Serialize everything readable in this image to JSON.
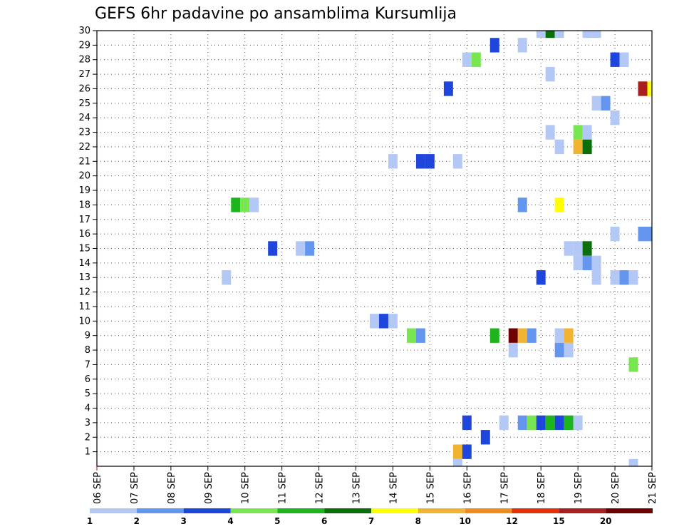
{
  "chart_data": {
    "type": "heatmap",
    "title": "GEFS 6hr padavine po ansamblima Kursumlija",
    "xlabel": "",
    "ylabel": "",
    "x_tick_labels": [
      "06 SEP",
      "07 SEP",
      "08 SEP",
      "09 SEP",
      "10 SEP",
      "11 SEP",
      "12 SEP",
      "13 SEP",
      "14 SEP",
      "15 SEP",
      "16 SEP",
      "17 SEP",
      "18 SEP",
      "19 SEP",
      "20 SEP",
      "21 SEP"
    ],
    "xlim_days": [
      0,
      15
    ],
    "y_tick_labels": [
      "1",
      "2",
      "3",
      "4",
      "5",
      "6",
      "7",
      "8",
      "9",
      "10",
      "11",
      "12",
      "13",
      "14",
      "15",
      "16",
      "17",
      "18",
      "19",
      "20",
      "21",
      "22",
      "23",
      "24",
      "25",
      "26",
      "27",
      "28",
      "29",
      "30"
    ],
    "ylim": [
      0,
      30
    ],
    "grid": true,
    "legend": {
      "placement": "bottom",
      "levels": [
        "1",
        "2",
        "3",
        "4",
        "5",
        "6",
        "7",
        "8",
        "10",
        "12",
        "15",
        "20"
      ],
      "colors": [
        "#b4c8f5",
        "#6496f0",
        "#1e46dc",
        "#78e650",
        "#1eb41e",
        "#0a6e0a",
        "#ffff00",
        "#f0b432",
        "#f08c1e",
        "#e1320a",
        "#aa1e1e",
        "#6e0000"
      ]
    },
    "cells": [
      {
        "member": 30,
        "day": 12.0,
        "level": 1
      },
      {
        "member": 30,
        "day": 12.25,
        "level": 6
      },
      {
        "member": 30,
        "day": 12.5,
        "level": 1
      },
      {
        "member": 30,
        "day": 13.25,
        "level": 1
      },
      {
        "member": 30,
        "day": 13.5,
        "level": 1
      },
      {
        "member": 29,
        "day": 10.75,
        "level": 3
      },
      {
        "member": 29,
        "day": 11.5,
        "level": 1
      },
      {
        "member": 28,
        "day": 10.0,
        "level": 1
      },
      {
        "member": 28,
        "day": 10.25,
        "level": 4
      },
      {
        "member": 28,
        "day": 14.0,
        "level": 3
      },
      {
        "member": 28,
        "day": 14.25,
        "level": 1
      },
      {
        "member": 27,
        "day": 12.25,
        "level": 1
      },
      {
        "member": 26,
        "day": 9.5,
        "level": 3
      },
      {
        "member": 26,
        "day": 14.75,
        "level": 15
      },
      {
        "member": 26,
        "day": 15.0,
        "level": 7
      },
      {
        "member": 25,
        "day": 13.5,
        "level": 1
      },
      {
        "member": 25,
        "day": 13.75,
        "level": 2
      },
      {
        "member": 24,
        "day": 14.0,
        "level": 1
      },
      {
        "member": 23,
        "day": 12.25,
        "level": 1
      },
      {
        "member": 23,
        "day": 13.0,
        "level": 4
      },
      {
        "member": 23,
        "day": 13.25,
        "level": 1
      },
      {
        "member": 22,
        "day": 12.5,
        "level": 1
      },
      {
        "member": 22,
        "day": 13.0,
        "level": 8
      },
      {
        "member": 22,
        "day": 13.25,
        "level": 6
      },
      {
        "member": 21,
        "day": 8.0,
        "level": 1
      },
      {
        "member": 21,
        "day": 8.75,
        "level": 3
      },
      {
        "member": 21,
        "day": 9.0,
        "level": 3
      },
      {
        "member": 21,
        "day": 9.75,
        "level": 1
      },
      {
        "member": 18,
        "day": 3.75,
        "level": 5
      },
      {
        "member": 18,
        "day": 4.0,
        "level": 4
      },
      {
        "member": 18,
        "day": 4.25,
        "level": 1
      },
      {
        "member": 18,
        "day": 11.5,
        "level": 2
      },
      {
        "member": 18,
        "day": 12.5,
        "level": 7
      },
      {
        "member": 16,
        "day": 14.0,
        "level": 1
      },
      {
        "member": 16,
        "day": 14.75,
        "level": 2
      },
      {
        "member": 16,
        "day": 15.0,
        "level": 2
      },
      {
        "member": 15,
        "day": 4.75,
        "level": 3
      },
      {
        "member": 15,
        "day": 5.5,
        "level": 1
      },
      {
        "member": 15,
        "day": 5.75,
        "level": 2
      },
      {
        "member": 15,
        "day": 12.75,
        "level": 1
      },
      {
        "member": 15,
        "day": 13.0,
        "level": 1
      },
      {
        "member": 15,
        "day": 13.25,
        "level": 6
      },
      {
        "member": 14,
        "day": 13.0,
        "level": 1
      },
      {
        "member": 14,
        "day": 13.25,
        "level": 2
      },
      {
        "member": 14,
        "day": 13.5,
        "level": 1
      },
      {
        "member": 13,
        "day": 3.5,
        "level": 1
      },
      {
        "member": 13,
        "day": 12.0,
        "level": 3
      },
      {
        "member": 13,
        "day": 13.5,
        "level": 1
      },
      {
        "member": 13,
        "day": 14.0,
        "level": 1
      },
      {
        "member": 13,
        "day": 14.25,
        "level": 2
      },
      {
        "member": 13,
        "day": 14.5,
        "level": 1
      },
      {
        "member": 10,
        "day": 7.5,
        "level": 1
      },
      {
        "member": 10,
        "day": 7.75,
        "level": 3
      },
      {
        "member": 10,
        "day": 8.0,
        "level": 1
      },
      {
        "member": 9,
        "day": 8.5,
        "level": 4
      },
      {
        "member": 9,
        "day": 8.75,
        "level": 2
      },
      {
        "member": 9,
        "day": 10.75,
        "level": 5
      },
      {
        "member": 9,
        "day": 11.25,
        "level": 20
      },
      {
        "member": 9,
        "day": 11.5,
        "level": 8
      },
      {
        "member": 9,
        "day": 11.75,
        "level": 2
      },
      {
        "member": 9,
        "day": 12.5,
        "level": 1
      },
      {
        "member": 9,
        "day": 12.75,
        "level": 8
      },
      {
        "member": 8,
        "day": 11.25,
        "level": 1
      },
      {
        "member": 8,
        "day": 12.5,
        "level": 2
      },
      {
        "member": 8,
        "day": 12.75,
        "level": 1
      },
      {
        "member": 7,
        "day": 14.5,
        "level": 4
      },
      {
        "member": 3,
        "day": 10.0,
        "level": 3
      },
      {
        "member": 3,
        "day": 11.0,
        "level": 1
      },
      {
        "member": 3,
        "day": 11.5,
        "level": 2
      },
      {
        "member": 3,
        "day": 11.75,
        "level": 4
      },
      {
        "member": 3,
        "day": 12.0,
        "level": 3
      },
      {
        "member": 3,
        "day": 12.25,
        "level": 5
      },
      {
        "member": 3,
        "day": 12.5,
        "level": 3
      },
      {
        "member": 3,
        "day": 12.75,
        "level": 5
      },
      {
        "member": 3,
        "day": 13.0,
        "level": 1
      },
      {
        "member": 2,
        "day": 10.5,
        "level": 3
      },
      {
        "member": 1,
        "day": 9.75,
        "level": 8
      },
      {
        "member": 1,
        "day": 10.0,
        "level": 3
      },
      {
        "member": 0,
        "day": 9.75,
        "level": 1
      },
      {
        "member": 0,
        "day": 14.5,
        "level": 1
      }
    ]
  }
}
